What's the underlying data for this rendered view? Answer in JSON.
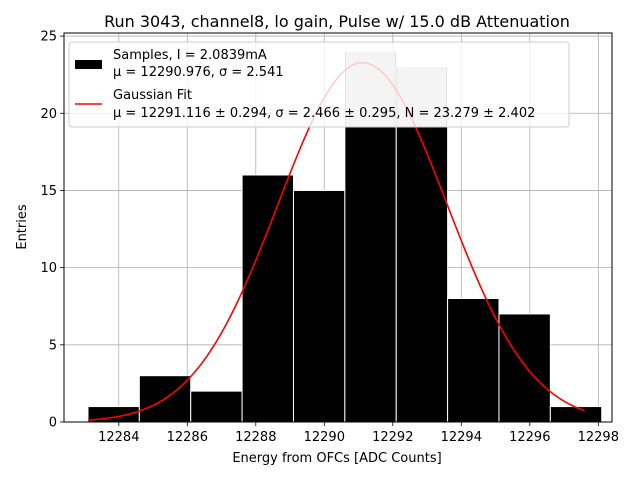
{
  "chart_data": {
    "type": "bar",
    "title": "Run 3043, channel8, lo gain, Pulse w/ 15.0 dB Attenuation",
    "xlabel": "Energy from OFCs [ADC Counts]",
    "ylabel": "Entries",
    "xlim": [
      12282.4,
      12298.4
    ],
    "ylim": [
      0,
      25.2
    ],
    "x_ticks": [
      12284,
      12286,
      12288,
      12290,
      12292,
      12294,
      12296,
      12298
    ],
    "y_ticks": [
      0,
      5,
      10,
      15,
      20,
      25
    ],
    "grid": true,
    "legend_position": "top-left",
    "bin_edges": [
      12283.1,
      12284.6,
      12286.1,
      12287.6,
      12289.1,
      12290.6,
      12292.1,
      12293.6,
      12295.1,
      12296.6,
      12298.1
    ],
    "histogram": {
      "name": "Samples, I = 2.0839mA",
      "stats": "μ = 12290.976, σ = 2.541",
      "values": [
        1,
        3,
        2,
        16,
        15,
        24,
        23,
        8,
        7,
        1
      ],
      "color": "#000000",
      "edgecolor": "#ffffff"
    },
    "fit": {
      "name": "Gaussian Fit",
      "stats": "μ = 12291.116 ± 0.294, σ = 2.466 ± 0.295, N = 23.279 ± 2.402",
      "mu": 12291.116,
      "sigma": 2.466,
      "N": 23.279,
      "x_range": [
        12283.1,
        12297.6
      ],
      "color": "#ff0000"
    },
    "overlay_bars": {
      "color": "#c8c8c8",
      "bins": [
        5,
        6
      ]
    }
  }
}
